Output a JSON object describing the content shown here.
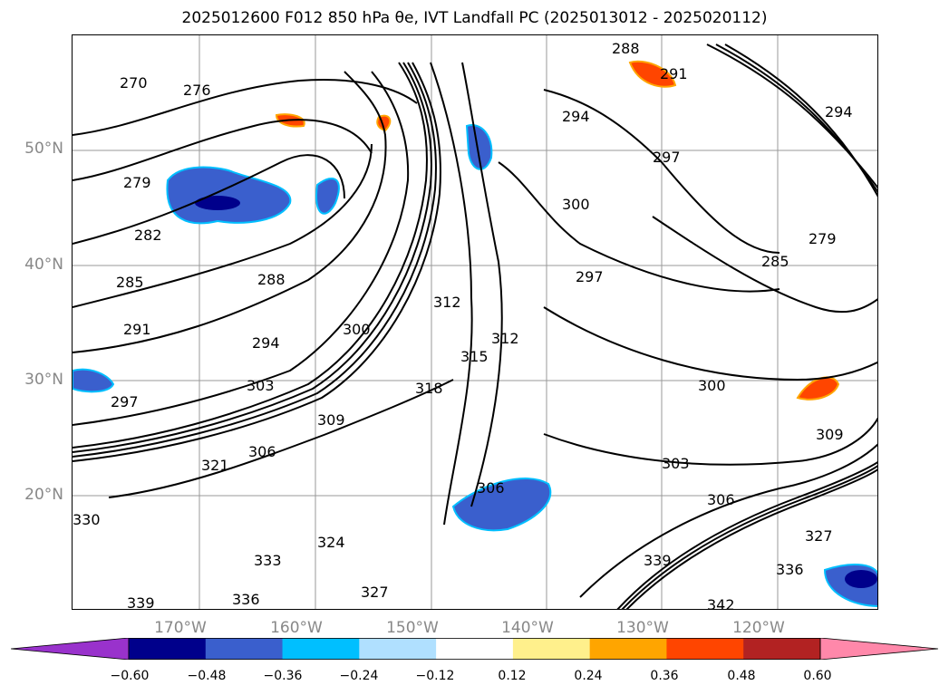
{
  "title": "2025012600 F012 850 hPa θe, IVT Landfall PC (2025013012 - 2025020112)",
  "map": {
    "lat_labels": [
      "50°N",
      "40°N",
      "30°N",
      "20°N"
    ],
    "lon_labels": [
      "170°W",
      "160°W",
      "150°W",
      "140°W",
      "130°W",
      "120°W"
    ],
    "contour_labels": [
      "270",
      "276",
      "279",
      "282",
      "285",
      "288",
      "291",
      "294",
      "297",
      "300",
      "303",
      "306",
      "309",
      "312",
      "315",
      "318",
      "321",
      "324",
      "327",
      "330",
      "333",
      "336",
      "339",
      "342",
      "294",
      "297",
      "300",
      "303",
      "306",
      "309",
      "312",
      "327",
      "336",
      "339",
      "279",
      "285",
      "288",
      "291",
      "294",
      "297",
      "300",
      "306"
    ],
    "colors": {
      "grid": "#999999",
      "contour": "#000000",
      "land": "#ffffff"
    }
  },
  "colorbar": {
    "ticks": [
      "−0.60",
      "−0.48",
      "−0.36",
      "−0.24",
      "−0.12",
      "0.12",
      "0.24",
      "0.36",
      "0.48",
      "0.60"
    ],
    "colors": [
      "#9932cc",
      "#00008b",
      "#3a5fcd",
      "#00bfff",
      "#b0e0ff",
      "#ffffff",
      "#fff08c",
      "#ffa500",
      "#ff4500",
      "#b22222",
      "#ff88aa"
    ]
  }
}
